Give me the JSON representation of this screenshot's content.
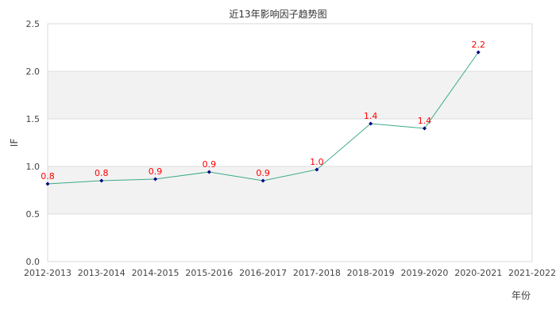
{
  "chart_data": {
    "type": "line",
    "title": "近13年影响因子趋势图",
    "xlabel": "年份",
    "ylabel": "IF",
    "categories": [
      "2012-2013",
      "2013-2014",
      "2014-2015",
      "2015-2016",
      "2016-2017",
      "2017-2018",
      "2018-2019",
      "2019-2020",
      "2020-2021",
      "2021-2022"
    ],
    "series": [
      {
        "name": "IF",
        "values": [
          0.817,
          0.85,
          0.867,
          0.942,
          0.85,
          0.967,
          1.45,
          1.4,
          2.2,
          null
        ],
        "labels": [
          "0.8",
          "0.8",
          "0.9",
          "0.9",
          "0.9",
          "1.0",
          "1.4",
          "1.4",
          "2.2",
          null
        ],
        "line_color": "#3aaa8a",
        "marker_color": "#000080"
      }
    ],
    "ylim": [
      0,
      2.5
    ],
    "yticks": [
      "0.0",
      "0.5",
      "1.0",
      "1.5",
      "2.0",
      "2.5"
    ],
    "grid": true,
    "band_colors": [
      "#ffffff",
      "#f2f2f2"
    ],
    "label_color": "#ff0000"
  }
}
